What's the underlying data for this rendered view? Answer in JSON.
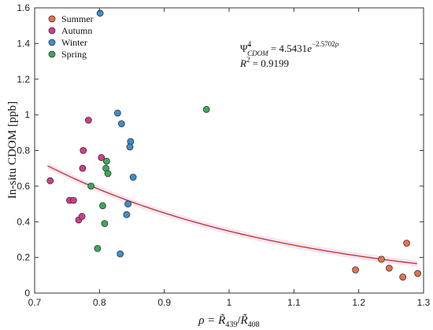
{
  "chart_data": {
    "type": "scatter",
    "title": "",
    "xlabel": "ρ = R̃439/R̃408",
    "ylabel": "In-situ CDOM [ppb]",
    "xlim": [
      0.7,
      1.3
    ],
    "ylim": [
      0,
      1.6
    ],
    "xticks": [
      0.7,
      0.8,
      0.9,
      1,
      1.1,
      1.2,
      1.3
    ],
    "xtick_labels": [
      "0.7",
      "0.8",
      "0.9",
      "1",
      "1.1",
      "1.2",
      "1.3"
    ],
    "yticks": [
      0,
      0.2,
      0.4,
      0.6,
      0.8,
      1,
      1.2,
      1.4,
      1.6
    ],
    "ytick_labels": [
      "0",
      "0.2",
      "0.4",
      "0.6",
      "0.8",
      "1",
      "1.2",
      "1.4",
      "1.6"
    ],
    "grid": false,
    "legend_position": "top-left",
    "series": [
      {
        "name": "Summer",
        "color": "#e8704a",
        "points": [
          {
            "x": 1.195,
            "y": 0.13
          },
          {
            "x": 1.235,
            "y": 0.19
          },
          {
            "x": 1.247,
            "y": 0.14
          },
          {
            "x": 1.268,
            "y": 0.09
          },
          {
            "x": 1.274,
            "y": 0.28
          },
          {
            "x": 1.291,
            "y": 0.11
          }
        ]
      },
      {
        "name": "Autumn",
        "color": "#d63a8c",
        "points": [
          {
            "x": 0.724,
            "y": 0.63
          },
          {
            "x": 0.754,
            "y": 0.52
          },
          {
            "x": 0.76,
            "y": 0.52
          },
          {
            "x": 0.768,
            "y": 0.41
          },
          {
            "x": 0.773,
            "y": 0.43
          },
          {
            "x": 0.774,
            "y": 0.7
          },
          {
            "x": 0.775,
            "y": 0.8
          },
          {
            "x": 0.783,
            "y": 0.97
          },
          {
            "x": 0.803,
            "y": 0.76
          }
        ]
      },
      {
        "name": "Winter",
        "color": "#3a8fd0",
        "points": [
          {
            "x": 0.801,
            "y": 1.57
          },
          {
            "x": 0.828,
            "y": 1.01
          },
          {
            "x": 0.834,
            "y": 0.95
          },
          {
            "x": 0.848,
            "y": 0.85
          },
          {
            "x": 0.847,
            "y": 0.82
          },
          {
            "x": 0.852,
            "y": 0.65
          },
          {
            "x": 0.844,
            "y": 0.5
          },
          {
            "x": 0.842,
            "y": 0.44
          },
          {
            "x": 0.832,
            "y": 0.22
          }
        ]
      },
      {
        "name": "Spring",
        "color": "#3aaa55",
        "points": [
          {
            "x": 0.787,
            "y": 0.6
          },
          {
            "x": 0.797,
            "y": 0.25
          },
          {
            "x": 0.805,
            "y": 0.49
          },
          {
            "x": 0.808,
            "y": 0.39
          },
          {
            "x": 0.81,
            "y": 0.7
          },
          {
            "x": 0.811,
            "y": 0.74
          },
          {
            "x": 0.813,
            "y": 0.67
          },
          {
            "x": 0.965,
            "y": 1.03
          }
        ]
      }
    ],
    "fit": {
      "equation": "Ψ̃⁴CDOM = 4.5431e^(−2.5702ρ)",
      "eq_lhs": "Ψ̃",
      "eq_sup": "4",
      "eq_sub": "CDOM",
      "eq_mid": " = 4.5431",
      "eq_base": "e",
      "eq_exp": "−2.5702ρ",
      "r2_label": "R² = 0.9199",
      "r2_lhs": "R",
      "r2_sup": "2",
      "r2_rhs": " = 0.9199",
      "a": 4.5431,
      "b": -2.5702,
      "x_range": [
        0.72,
        1.29
      ],
      "color": "#b5351d",
      "band_color": "#f3d7f0"
    },
    "xlabel_parts": {
      "lhs": "ρ = ",
      "num": "R̃",
      "num_sub": "439",
      "div": "/",
      "den": "R̃",
      "den_sub": "408"
    }
  }
}
